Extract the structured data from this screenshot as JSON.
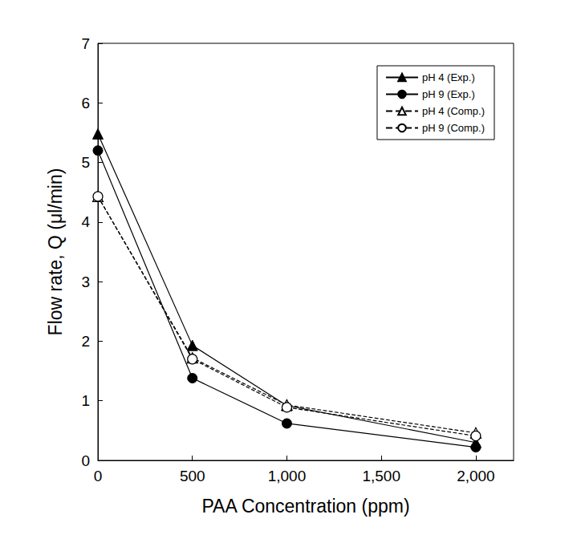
{
  "chart_data": {
    "type": "line",
    "x_label": "PAA Concentration (ppm)",
    "y_label": "Flow rate, Q (μl/min)",
    "x": [
      0,
      500,
      1000,
      2000
    ],
    "series": [
      {
        "name": "pH 4 (Exp.)",
        "color": "#000000",
        "marker": "triangle-filled",
        "line_style": "solid",
        "values": [
          5.48,
          1.93,
          0.92,
          0.3
        ]
      },
      {
        "name": "pH 9 (Exp.)",
        "color": "#000000",
        "marker": "circle-filled",
        "line_style": "solid",
        "values": [
          5.2,
          1.38,
          0.62,
          0.22
        ]
      },
      {
        "name": "pH 4 (Comp.)",
        "color": "#000000",
        "marker": "triangle-open",
        "line_style": "dashed",
        "values": [
          4.43,
          1.72,
          0.93,
          0.46
        ]
      },
      {
        "name": "pH 9 (Comp.)",
        "color": "#000000",
        "marker": "circle-open",
        "line_style": "dashed",
        "values": [
          4.43,
          1.7,
          0.89,
          0.41
        ]
      }
    ],
    "xlim": [
      0,
      2200
    ],
    "xticks": [
      0,
      500,
      1000,
      1500,
      2000
    ],
    "ylim": [
      0,
      7
    ],
    "yticks": [
      0,
      1,
      2,
      3,
      4,
      5,
      6,
      7
    ],
    "grid": false,
    "legend": "upper right"
  }
}
